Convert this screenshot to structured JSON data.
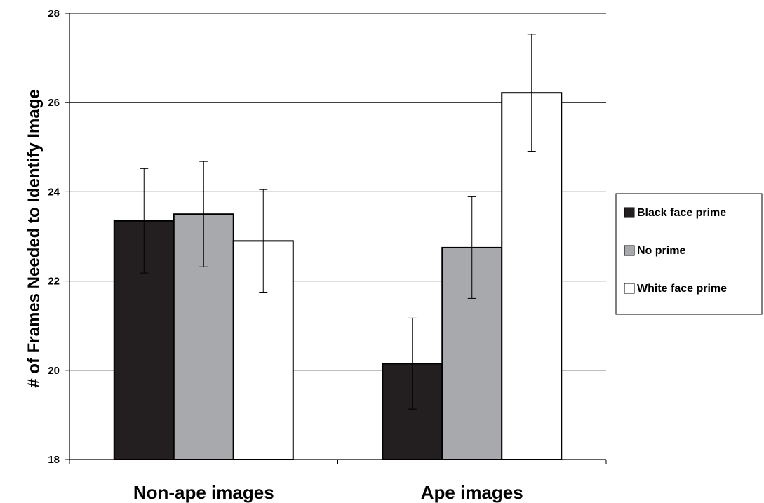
{
  "chart_data": {
    "type": "bar",
    "title": "",
    "xlabel": "",
    "ylabel": "# of Frames Needed to Identify Image",
    "ylim": [
      18,
      28
    ],
    "yticks": [
      "18",
      "20",
      "22",
      "24",
      "26",
      "28"
    ],
    "grid": true,
    "legend_position": "right",
    "categories": [
      "Non-ape images",
      "Ape images"
    ],
    "series": [
      {
        "name": "Black face prime",
        "color": "#231f20",
        "values": [
          23.35,
          20.15
        ],
        "error": [
          1.17,
          1.02
        ]
      },
      {
        "name": "No prime",
        "color": "#a7a9ac",
        "values": [
          23.5,
          22.75
        ],
        "error": [
          1.18,
          1.14
        ]
      },
      {
        "name": "White face prime",
        "color": "#ffffff",
        "values": [
          22.9,
          26.22
        ],
        "error": [
          1.15,
          1.31
        ]
      }
    ]
  }
}
